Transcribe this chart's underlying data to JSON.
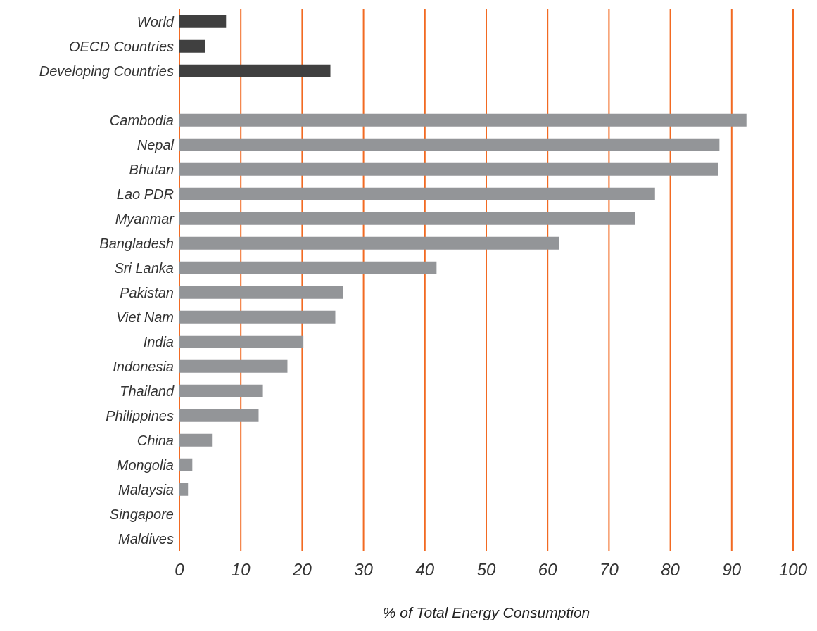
{
  "chart_data": {
    "type": "bar",
    "orientation": "horizontal",
    "xlabel": "% of Total Energy Consumption",
    "categories": [
      "World",
      "OECD Countries",
      "Developing Countries",
      null,
      "Cambodia",
      "Nepal",
      "Bhutan",
      "Lao PDR",
      "Myanmar",
      "Bangladesh",
      "Sri Lanka",
      "Pakistan",
      "Viet Nam",
      "India",
      "Indonesia",
      "Thailand",
      "Philippines",
      "China",
      "Mongolia",
      "Malaysia",
      "Singapore",
      "Maldives"
    ],
    "values": [
      7.6,
      4.2,
      24.6,
      null,
      92.4,
      88.0,
      87.8,
      77.5,
      74.3,
      61.9,
      41.9,
      26.7,
      25.4,
      20.2,
      17.6,
      13.6,
      12.9,
      5.3,
      2.1,
      1.4,
      0,
      0
    ],
    "colors": [
      "#404040",
      "#404040",
      "#404040",
      "#939598",
      "#939598",
      "#939598",
      "#939598",
      "#939598",
      "#939598",
      "#939598",
      "#939598",
      "#939598",
      "#939598",
      "#939598",
      "#939598",
      "#939598",
      "#939598",
      "#939598",
      "#939598",
      "#939598",
      "#939598",
      "#939598"
    ],
    "xlim": [
      0,
      100
    ],
    "xticks": [
      0,
      10,
      20,
      30,
      40,
      50,
      60,
      70,
      80,
      90,
      100
    ],
    "grid": "x",
    "legend": false
  }
}
